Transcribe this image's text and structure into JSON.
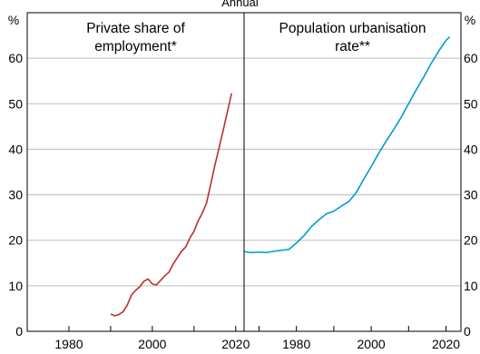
{
  "subtitle": "Annual",
  "y_unit": "%",
  "chart_data": [
    {
      "type": "line",
      "title": "Private share of employment*",
      "title_lines": [
        "Private share of",
        "employment*"
      ],
      "xlim": [
        1970,
        2022
      ],
      "ylim": [
        0,
        70
      ],
      "x_ticks": [
        1980,
        2000,
        2020
      ],
      "y_ticks": [
        0,
        10,
        20,
        30,
        40,
        50,
        60
      ],
      "y_ticks_labels": [
        "0",
        "10",
        "20",
        "30",
        "40",
        "50",
        "60"
      ],
      "grid": true,
      "color": "#b9312b",
      "series": [
        {
          "x": [
            1990,
            1991,
            1992,
            1993,
            1994,
            1995,
            1996,
            1997,
            1998,
            1999,
            2000,
            2001,
            2002,
            2003,
            2004,
            2005,
            2006,
            2007,
            2008,
            2009,
            2010,
            2011,
            2012,
            2013,
            2014,
            2015,
            2016,
            2017,
            2018,
            2019
          ],
          "y": [
            3.8,
            3.4,
            3.7,
            4.3,
            5.8,
            8.0,
            9.0,
            9.8,
            11.0,
            11.5,
            10.4,
            10.2,
            11.2,
            12.2,
            13.0,
            14.8,
            16.2,
            17.6,
            18.5,
            20.5,
            22.0,
            24.3,
            26.0,
            28.2,
            32.3,
            36.5,
            40.3,
            44.2,
            48.2,
            52.3
          ]
        }
      ]
    },
    {
      "type": "line",
      "title": "Population urbanisation rate**",
      "title_lines": [
        "Population urbanisation",
        "rate**"
      ],
      "xlim": [
        1966,
        2024
      ],
      "ylim": [
        0,
        70
      ],
      "x_ticks": [
        1980,
        2000,
        2020
      ],
      "y_ticks": [
        0,
        10,
        20,
        30,
        40,
        50,
        60
      ],
      "y_ticks_labels": [
        "0",
        "10",
        "20",
        "30",
        "40",
        "50",
        "60"
      ],
      "grid": true,
      "color": "#009bd1",
      "series": [
        {
          "x": [
            1966,
            1968,
            1970,
            1972,
            1974,
            1976,
            1978,
            1980,
            1982,
            1984,
            1986,
            1988,
            1990,
            1992,
            1994,
            1996,
            1998,
            2000,
            2002,
            2004,
            2006,
            2008,
            2010,
            2012,
            2014,
            2016,
            2018,
            2020,
            2021
          ],
          "y": [
            17.5,
            17.3,
            17.4,
            17.3,
            17.6,
            17.8,
            18.0,
            19.4,
            21.0,
            23.0,
            24.5,
            25.8,
            26.4,
            27.5,
            28.5,
            30.5,
            33.4,
            36.2,
            39.1,
            41.8,
            44.3,
            47.0,
            50.0,
            53.0,
            55.8,
            58.8,
            61.5,
            63.9,
            64.7
          ]
        }
      ]
    }
  ]
}
